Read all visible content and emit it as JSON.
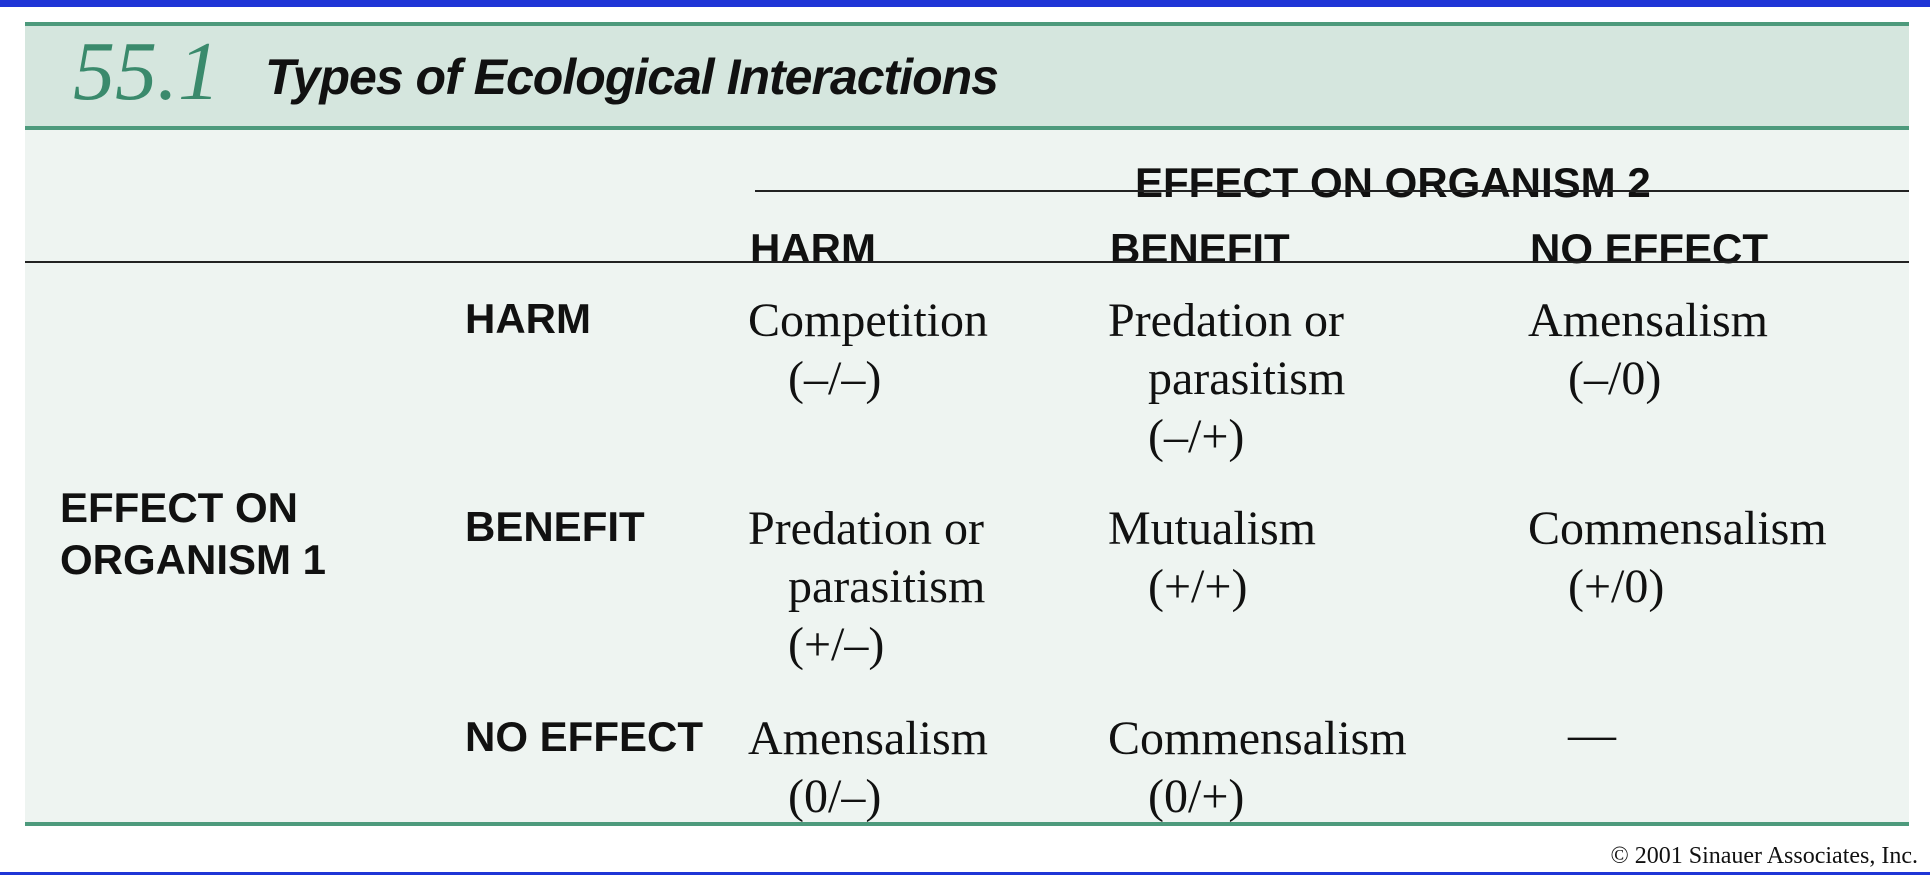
{
  "table": {
    "number": "55.1",
    "title": "Types of Ecological Interactions",
    "column_group": "EFFECT ON ORGANISM 2",
    "row_group_line1": "EFFECT ON",
    "row_group_line2": "ORGANISM 1",
    "columns": [
      "HARM",
      "BENEFIT",
      "NO EFFECT"
    ],
    "rows": [
      {
        "label": "HARM",
        "cells": [
          {
            "lines": [
              "Competition",
              "(–/–)"
            ]
          },
          {
            "lines": [
              "Predation or",
              "parasitism",
              "(–/+)"
            ]
          },
          {
            "lines": [
              "Amensalism",
              "(–/0)"
            ]
          }
        ]
      },
      {
        "label": "BENEFIT",
        "cells": [
          {
            "lines": [
              "Predation or",
              "parasitism",
              "(+/–)"
            ]
          },
          {
            "lines": [
              "Mutualism",
              "(+/+)"
            ]
          },
          {
            "lines": [
              "Commensalism",
              "(+/0)"
            ]
          }
        ]
      },
      {
        "label": "NO EFFECT",
        "cells": [
          {
            "lines": [
              "Amensalism",
              "(0/–)"
            ]
          },
          {
            "lines": [
              "Commensalism",
              "(0/+)"
            ]
          },
          {
            "lines": [
              "—"
            ]
          }
        ]
      }
    ]
  },
  "footer": {
    "copyright": "© 2001 Sinauer Associates, Inc."
  }
}
